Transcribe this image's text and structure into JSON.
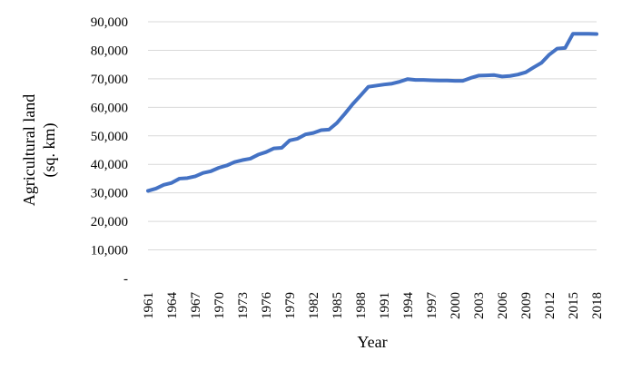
{
  "chart_data": {
    "type": "line",
    "title": "",
    "xlabel": "Year",
    "ylabel_lines": [
      "Agricultural land",
      "(sq. km)"
    ],
    "xlim": [
      1961,
      2018
    ],
    "ylim": [
      0,
      90000
    ],
    "y_ticks": [
      0,
      10000,
      20000,
      30000,
      40000,
      50000,
      60000,
      70000,
      80000,
      90000
    ],
    "y_tick_labels": [
      "-",
      "10,000",
      "20,000",
      "30,000",
      "40,000",
      "50,000",
      "60,000",
      "70,000",
      "80,000",
      "90,000"
    ],
    "x_ticks": [
      1961,
      1964,
      1967,
      1970,
      1973,
      1976,
      1979,
      1982,
      1985,
      1988,
      1991,
      1994,
      1997,
      2000,
      2003,
      2006,
      2009,
      2012,
      2015,
      2018
    ],
    "grid": true,
    "legend": "none",
    "color": "#4472C4",
    "series": [
      {
        "x": [
          1961,
          1962,
          1963,
          1964,
          1965,
          1966,
          1967,
          1968,
          1969,
          1970,
          1971,
          1972,
          1973,
          1974,
          1975,
          1976,
          1977,
          1978,
          1979,
          1980,
          1981,
          1982,
          1983,
          1984,
          1985,
          1986,
          1987,
          1988,
          1989,
          1990,
          1991,
          1992,
          1993,
          1994,
          1995,
          1996,
          1997,
          1998,
          1999,
          2000,
          2001,
          2002,
          2003,
          2004,
          2005,
          2006,
          2007,
          2008,
          2009,
          2010,
          2011,
          2012,
          2013,
          2014,
          2015,
          2016,
          2017,
          2018
        ],
        "values": [
          30700,
          31500,
          32800,
          33500,
          35000,
          35200,
          35800,
          37000,
          37600,
          38800,
          39600,
          40800,
          41500,
          42000,
          43400,
          44300,
          45600,
          45800,
          48400,
          49000,
          50500,
          51000,
          52000,
          52200,
          54500,
          57700,
          61100,
          64100,
          67200,
          67600,
          68000,
          68300,
          69000,
          69900,
          69600,
          69600,
          69500,
          69400,
          69400,
          69300,
          69300,
          70300,
          71100,
          71200,
          71300,
          70800,
          71000,
          71500,
          72300,
          74000,
          75600,
          78500,
          80600,
          80800,
          85800,
          85800,
          85800,
          85700
        ]
      }
    ]
  }
}
